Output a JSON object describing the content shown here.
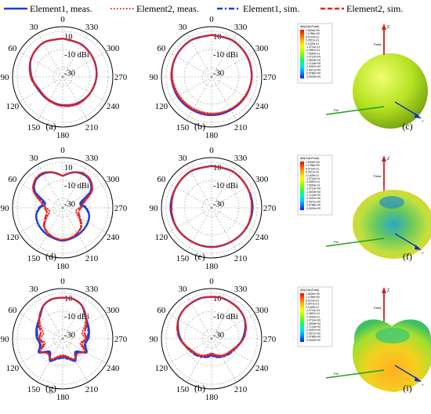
{
  "legend": [
    {
      "label": "Element1, meas.",
      "color": "#1f3fd8",
      "dash": "solid"
    },
    {
      "label": "Element2, meas.",
      "color": "#e8231d",
      "dash": "dot"
    },
    {
      "label": "Element1, sim.",
      "color": "#1f3fd8",
      "dash": "dashdot"
    },
    {
      "label": "Element2, sim.",
      "color": "#e8231d",
      "dash": "dash"
    }
  ],
  "chart_data": [
    {
      "type": "polar-line",
      "panel_label": "(a)",
      "unit_label": "-10 dBi",
      "radial_ticks": [
        "10",
        "-10 dBi",
        "-30"
      ],
      "rlim": [
        -40,
        15
      ],
      "angle_ticks": [
        "0",
        "30",
        "60",
        "90",
        "120",
        "150",
        "180",
        "210",
        "240",
        "270",
        "300",
        "330"
      ],
      "angles": [
        0,
        30,
        60,
        90,
        120,
        150,
        180,
        210,
        240,
        270,
        300,
        330,
        360
      ],
      "series": [
        {
          "name": "Element1, meas.",
          "values": [
            2,
            3,
            0,
            -6,
            -10,
            -10,
            -9,
            -7,
            -5,
            -3,
            -1,
            1,
            2
          ]
        },
        {
          "name": "Element2, meas.",
          "values": [
            2,
            3,
            0,
            -6,
            -11,
            -11,
            -9,
            -7,
            -5,
            -3,
            -1,
            1,
            2
          ]
        },
        {
          "name": "Element1, sim.",
          "values": [
            2,
            3,
            0,
            -5,
            -10,
            -10,
            -8,
            -6,
            -5,
            -3,
            -1,
            1,
            2
          ]
        },
        {
          "name": "Element2, sim.",
          "values": [
            2,
            3,
            0,
            -5,
            -11,
            -10,
            -8,
            -6,
            -5,
            -3,
            -1,
            1,
            2
          ]
        }
      ]
    },
    {
      "type": "polar-line",
      "panel_label": "(b)",
      "unit_label": "-10 dBi",
      "radial_ticks": [
        "10",
        "-10 dBi",
        "-30"
      ],
      "rlim": [
        -40,
        15
      ],
      "angle_ticks": [
        "0",
        "30",
        "60",
        "90",
        "120",
        "150",
        "180",
        "210",
        "240",
        "270",
        "300",
        "330"
      ],
      "angles": [
        0,
        30,
        60,
        90,
        120,
        150,
        180,
        210,
        240,
        270,
        300,
        330,
        360
      ],
      "series": [
        {
          "name": "Element1, meas.",
          "values": [
            6,
            6,
            5,
            4,
            3,
            2,
            2,
            2,
            3,
            4,
            5,
            6,
            6
          ]
        },
        {
          "name": "Element2, meas.",
          "values": [
            6,
            6,
            5,
            3,
            1,
            0,
            0,
            1,
            2,
            4,
            5,
            6,
            6
          ]
        },
        {
          "name": "Element1, sim.",
          "values": [
            6,
            6,
            5,
            4,
            3,
            2,
            2,
            2,
            3,
            4,
            5,
            6,
            6
          ]
        },
        {
          "name": "Element2, sim.",
          "values": [
            6,
            6,
            5,
            4,
            2,
            1,
            1,
            1,
            3,
            4,
            5,
            6,
            6
          ]
        }
      ]
    },
    {
      "type": "polar-line",
      "panel_label": "(d)",
      "unit_label": "-10 dBi",
      "radial_ticks": [
        "10",
        "-10 dBi",
        "-30"
      ],
      "rlim": [
        -40,
        15
      ],
      "angle_ticks": [
        "0",
        "30",
        "60",
        "90",
        "120",
        "150",
        "180",
        "210",
        "240",
        "270",
        "300",
        "330"
      ],
      "angles": [
        0,
        15,
        30,
        45,
        60,
        75,
        90,
        105,
        120,
        135,
        150,
        165,
        180,
        195,
        210,
        225,
        240,
        255,
        270,
        285,
        300,
        315,
        330,
        345,
        360
      ],
      "series": [
        {
          "name": "Element1, meas.",
          "values": [
            -5,
            0,
            3,
            2,
            -5,
            -20,
            -15,
            -10,
            -8,
            -7,
            -6,
            -5,
            -4,
            -5,
            -6,
            -7,
            -8,
            -10,
            -15,
            -20,
            -5,
            2,
            3,
            0,
            -5
          ]
        },
        {
          "name": "Element2, meas.",
          "values": [
            -5,
            0,
            4,
            3,
            -3,
            -15,
            -22,
            -25,
            -20,
            -12,
            -8,
            -6,
            -5,
            -6,
            -8,
            -12,
            -20,
            -25,
            -22,
            -15,
            -3,
            3,
            4,
            0,
            -5
          ]
        },
        {
          "name": "Element1, sim.",
          "values": [
            -5,
            0,
            3,
            2,
            -4,
            -18,
            -14,
            -10,
            -8,
            -7,
            -6,
            -5,
            -4,
            -5,
            -6,
            -7,
            -8,
            -10,
            -14,
            -18,
            -4,
            2,
            3,
            0,
            -5
          ]
        },
        {
          "name": "Element2, sim.",
          "values": [
            -5,
            0,
            4,
            3,
            -3,
            -16,
            -20,
            -22,
            -18,
            -11,
            -8,
            -6,
            -5,
            -6,
            -8,
            -11,
            -18,
            -22,
            -20,
            -16,
            -3,
            3,
            4,
            0,
            -5
          ]
        }
      ]
    },
    {
      "type": "polar-line",
      "panel_label": "(e)",
      "unit_label": "-10 dBi",
      "radial_ticks": [
        "10",
        "-10 dBi",
        "-30"
      ],
      "rlim": [
        -40,
        15
      ],
      "angle_ticks": [
        "0",
        "30",
        "60",
        "90",
        "120",
        "150",
        "180",
        "210",
        "240",
        "270",
        "300",
        "330"
      ],
      "angles": [
        0,
        30,
        60,
        90,
        120,
        150,
        180,
        210,
        240,
        270,
        300,
        330,
        360
      ],
      "series": [
        {
          "name": "Element1, meas.",
          "values": [
            6,
            6,
            5,
            5,
            4,
            3,
            3,
            3,
            4,
            5,
            5,
            6,
            6
          ]
        },
        {
          "name": "Element2, meas.",
          "values": [
            6,
            6,
            5,
            4,
            4,
            3,
            3,
            3,
            4,
            4,
            5,
            6,
            6
          ]
        },
        {
          "name": "Element1, sim.",
          "values": [
            6,
            6,
            5,
            4,
            4,
            3,
            3,
            3,
            4,
            5,
            5,
            6,
            6
          ]
        },
        {
          "name": "Element2, sim.",
          "values": [
            6,
            6,
            5,
            4,
            4,
            3,
            3,
            3,
            4,
            4,
            5,
            6,
            6
          ]
        }
      ]
    },
    {
      "type": "polar-line",
      "panel_label": "(g)",
      "unit_label": "-10 dBi",
      "radial_ticks": [
        "10",
        "-10 dBi",
        "-30"
      ],
      "rlim": [
        -40,
        15
      ],
      "angle_ticks": [
        "0",
        "30",
        "60",
        "90",
        "120",
        "150",
        "180",
        "210",
        "240",
        "270",
        "300",
        "330"
      ],
      "angles": [
        0,
        15,
        30,
        45,
        60,
        75,
        90,
        105,
        120,
        135,
        150,
        165,
        180,
        195,
        210,
        225,
        240,
        255,
        270,
        285,
        300,
        315,
        330,
        345,
        360
      ],
      "series": [
        {
          "name": "Element1, meas.",
          "values": [
            5,
            5,
            2,
            -5,
            -8,
            -10,
            -12,
            -15,
            -10,
            -20,
            -12,
            -18,
            -20,
            -18,
            -12,
            -20,
            -10,
            -15,
            -12,
            -10,
            -8,
            -5,
            2,
            5,
            5
          ]
        },
        {
          "name": "Element2, meas.",
          "values": [
            5,
            5,
            2,
            -4,
            -12,
            -18,
            -15,
            -20,
            -12,
            -18,
            -14,
            -20,
            -22,
            -20,
            -14,
            -18,
            -12,
            -20,
            -15,
            -18,
            -12,
            -4,
            2,
            5,
            5
          ]
        },
        {
          "name": "Element1, sim.",
          "values": [
            5,
            5,
            2,
            -5,
            -9,
            -11,
            -13,
            -14,
            -11,
            -18,
            -13,
            -17,
            -19,
            -17,
            -13,
            -18,
            -11,
            -14,
            -13,
            -11,
            -9,
            -5,
            2,
            5,
            5
          ]
        },
        {
          "name": "Element2, sim.",
          "values": [
            5,
            5,
            2,
            -4,
            -10,
            -15,
            -14,
            -18,
            -12,
            -17,
            -14,
            -19,
            -21,
            -19,
            -14,
            -17,
            -12,
            -18,
            -14,
            -15,
            -10,
            -4,
            2,
            5,
            5
          ]
        }
      ]
    },
    {
      "type": "polar-line",
      "panel_label": "(h)",
      "unit_label": "-10 dBi",
      "radial_ticks": [
        "10",
        "-10 dBi",
        "-30"
      ],
      "rlim": [
        -40,
        15
      ],
      "angle_ticks": [
        "0",
        "30",
        "60",
        "90",
        "120",
        "150",
        "180",
        "210",
        "240",
        "270",
        "300",
        "330"
      ],
      "angles": [
        0,
        15,
        30,
        45,
        60,
        75,
        90,
        105,
        120,
        135,
        150,
        165,
        180,
        195,
        210,
        225,
        240,
        255,
        270,
        285,
        300,
        315,
        330,
        345,
        360
      ],
      "series": [
        {
          "name": "Element1, meas.",
          "values": [
            6,
            6,
            5,
            4,
            2,
            -2,
            -6,
            -10,
            -14,
            -16,
            -18,
            -20,
            -22,
            -20,
            -18,
            -16,
            -14,
            -10,
            -6,
            -2,
            2,
            4,
            5,
            6,
            6
          ]
        },
        {
          "name": "Element2, meas.",
          "values": [
            6,
            6,
            5,
            4,
            2,
            -1,
            -5,
            -11,
            -15,
            -17,
            -19,
            -22,
            -24,
            -22,
            -19,
            -17,
            -15,
            -11,
            -5,
            -1,
            2,
            4,
            5,
            6,
            6
          ]
        },
        {
          "name": "Element1, sim.",
          "values": [
            6,
            6,
            5,
            4,
            2,
            -2,
            -6,
            -10,
            -13,
            -15,
            -17,
            -19,
            -21,
            -19,
            -17,
            -15,
            -13,
            -10,
            -6,
            -2,
            2,
            4,
            5,
            6,
            6
          ]
        },
        {
          "name": "Element2, sim.",
          "values": [
            6,
            6,
            5,
            4,
            2,
            -1,
            -5,
            -10,
            -14,
            -16,
            -18,
            -21,
            -23,
            -21,
            -18,
            -16,
            -14,
            -10,
            -5,
            -1,
            2,
            4,
            5,
            6,
            6
          ]
        }
      ]
    }
  ],
  "field_plots": [
    {
      "panel_label": "(c)",
      "shape": "sphere",
      "scale_title": "dB(GainTotal)",
      "scale_ticks": [
        "1.5000e+00",
        "1.1786e+00",
        "8.5714e-01",
        "5.3571e-01",
        "2.1429e-01",
        "-1.0714e-01",
        "-4.2857e-01",
        "-7.5000e-01",
        "-1.0714e+00",
        "-1.3929e+00",
        "-1.7143e+00",
        "-2.0357e+00",
        "-2.3571e+00",
        "-2.6786e+00",
        "-3.0000e+00"
      ],
      "axis_labels": {
        "z": "Z",
        "phi": "Phi",
        "y": "Y",
        "theta": "Theta"
      }
    },
    {
      "panel_label": "(f)",
      "shape": "dimpled",
      "scale_title": "dB(GainTotal)",
      "scale_ticks": [
        "1.5000e+00",
        "1.1786e+00",
        "8.5714e-01",
        "5.3571e-01",
        "2.1429e-01",
        "-1.0714e-01",
        "-4.2857e-01",
        "-7.5000e-01",
        "-1.0714e+00",
        "-1.3929e+00",
        "-1.7143e+00",
        "-2.0357e+00",
        "-2.3571e+00",
        "-2.6786e+00",
        "-3.0000e+00"
      ],
      "axis_labels": {
        "z": "Z",
        "phi": "Phi",
        "y": "Y",
        "theta": "Theta"
      }
    },
    {
      "panel_label": "(i)",
      "shape": "lobed",
      "scale_title": "dB(GainTotal)",
      "scale_ticks": [
        "1.5000e+00",
        "1.1786e+00",
        "8.5714e-01",
        "5.3571e-01",
        "2.1429e-01",
        "-1.0714e-01",
        "-4.2857e-01",
        "-7.5000e-01",
        "-1.0714e+00",
        "-1.3929e+00",
        "-1.7143e+00",
        "-2.0357e+00",
        "-2.3571e+00",
        "-2.6786e+00",
        "-3.0000e+00"
      ],
      "axis_labels": {
        "z": "Z",
        "phi": "Phi",
        "y": "Y",
        "theta": "Theta"
      }
    }
  ]
}
